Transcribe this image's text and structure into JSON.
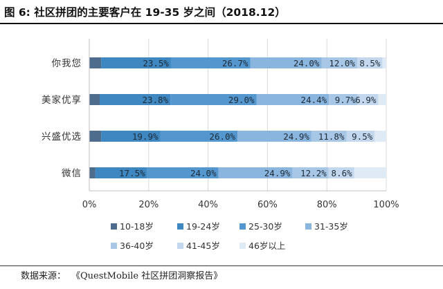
{
  "figure": {
    "title": "图 6: 社区拼团的主要客户在 19-35 岁之间（2018.12）",
    "source_label": "数据来源：",
    "source_value": "《QuestMobile 社区拼团洞察报告》"
  },
  "chart_data": {
    "type": "bar",
    "orientation": "horizontal",
    "stacked": true,
    "percent_stacked": true,
    "title": "图 6: 社区拼团的主要客户在 19-35 岁之间（2018.12）",
    "categories": [
      "你我您",
      "美家优享",
      "兴盛优选",
      "微信"
    ],
    "series": [
      {
        "name": "10-18岁",
        "values": [
          4.0,
          3.5,
          4.0,
          2.0
        ],
        "color": "#4e6d8d",
        "labels": [
          "",
          "",
          "",
          ""
        ]
      },
      {
        "name": "19-24岁",
        "values": [
          23.5,
          23.8,
          19.9,
          17.5
        ],
        "color": "#3e87c0",
        "labels": [
          "23.5%",
          "23.8%",
          "19.9%",
          "17.5%"
        ]
      },
      {
        "name": "25-30岁",
        "values": [
          26.7,
          29.0,
          26.0,
          24.0
        ],
        "color": "#5497cf",
        "labels": [
          "26.7%",
          "29.0%",
          "26.0%",
          "24.0%"
        ]
      },
      {
        "name": "31-35岁",
        "values": [
          24.0,
          24.4,
          24.9,
          24.9
        ],
        "color": "#89b5de",
        "labels": [
          "24.0%",
          "24.4%",
          "24.9%",
          "24.9%"
        ]
      },
      {
        "name": "36-40岁",
        "values": [
          12.0,
          9.7,
          11.8,
          12.2
        ],
        "color": "#a8c7e6",
        "labels": [
          "12.0%",
          "9.7%",
          "11.8%",
          "12.2%"
        ]
      },
      {
        "name": "41-45岁",
        "values": [
          8.5,
          6.9,
          9.5,
          8.6
        ],
        "color": "#c3d8ee",
        "labels": [
          "8.5%",
          "6.9%",
          "9.5%",
          "8.6%"
        ]
      },
      {
        "name": "46岁以上",
        "values": [
          1.3,
          2.7,
          3.9,
          10.8
        ],
        "color": "#e0eaf5",
        "labels": [
          "",
          "",
          "",
          ""
        ]
      }
    ],
    "xlim": [
      0,
      100
    ],
    "x_ticks": [
      "0%",
      "20%",
      "40%",
      "60%",
      "80%",
      "100%"
    ],
    "xlabel": "",
    "ylabel": "",
    "grid": true,
    "legend_position": "bottom"
  }
}
